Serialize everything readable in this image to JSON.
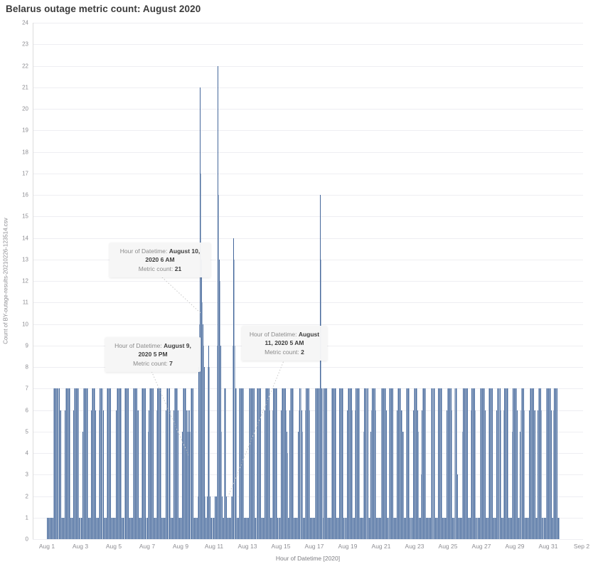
{
  "title": "Belarus outage metric count: August 2020",
  "y_axis": {
    "title": "Count of BY-outage-results-20210226-123514.csv",
    "min": 0,
    "max": 24,
    "tick_step": 1
  },
  "x_axis": {
    "title": "Hour of Datetime [2020]",
    "tick_labels": [
      "Aug 1",
      "Aug 3",
      "Aug 5",
      "Aug 7",
      "Aug 9",
      "Aug 11",
      "Aug 13",
      "Aug 15",
      "Aug 17",
      "Aug 19",
      "Aug 21",
      "Aug 23",
      "Aug 25",
      "Aug 27",
      "Aug 29",
      "Aug 31",
      "Sep 2"
    ]
  },
  "colors": {
    "bar_dark": "#44679b",
    "bar_light": "#a6b7cf",
    "grid": "#eeeef2",
    "tick_text": "#8e8e93",
    "title_text": "#3b3b3b",
    "tooltip_bg": "#f6f6f6",
    "tooltip_text": "#8a8a8a",
    "tooltip_bold": "#3d3d3d",
    "leader": "#c8c8c8"
  },
  "tooltips": [
    {
      "line_label": "Hour of Datetime: ",
      "datetime": "August 10, 2020 6 AM",
      "metric_label": "Metric count: ",
      "metric": "21"
    },
    {
      "line_label": "Hour of Datetime: ",
      "datetime": "August 9, 2020 5 PM",
      "metric_label": "Metric count: ",
      "metric": "7"
    },
    {
      "line_label": "Hour of Datetime: ",
      "datetime": "August 11, 2020 5 AM",
      "metric_label": "Metric count: ",
      "metric": "2"
    }
  ],
  "chart_data": {
    "type": "bar",
    "title": "Belarus outage metric count: August 2020",
    "xlabel": "Hour of Datetime [2020]",
    "ylabel": "Count of BY-outage-results-20210226-123514.csv",
    "ylim": [
      0,
      24
    ],
    "x_unit": "hour",
    "x_start": "2020-08-01 00:00",
    "x_end": "2020-08-31 23:00",
    "grid": true,
    "annotations": [
      {
        "datetime": "August 10, 2020 6 AM",
        "metric_count": 21
      },
      {
        "datetime": "August 9, 2020 5 PM",
        "metric_count": 7
      },
      {
        "datetime": "August 11, 2020 5 AM",
        "metric_count": 2
      }
    ],
    "days": [
      [
        1,
        1,
        1,
        1,
        1,
        1,
        1,
        1,
        1,
        7,
        7,
        7,
        7,
        7,
        7,
        7,
        7,
        7,
        7,
        6,
        6,
        1,
        1,
        1
      ],
      [
        1,
        1,
        6,
        7,
        7,
        7,
        7,
        7,
        7,
        7,
        1,
        1,
        1,
        1,
        6,
        7,
        7,
        7,
        7,
        7,
        7,
        7,
        1,
        1
      ],
      [
        1,
        1,
        1,
        1,
        5,
        7,
        7,
        7,
        7,
        7,
        7,
        7,
        1,
        1,
        1,
        1,
        6,
        7,
        7,
        7,
        7,
        7,
        6,
        1
      ],
      [
        1,
        1,
        1,
        6,
        7,
        7,
        7,
        7,
        7,
        7,
        6,
        1,
        1,
        1,
        1,
        7,
        7,
        7,
        7,
        7,
        7,
        1,
        1,
        1
      ],
      [
        1,
        1,
        1,
        1,
        6,
        7,
        7,
        7,
        7,
        7,
        7,
        7,
        1,
        1,
        1,
        1,
        5,
        7,
        7,
        7,
        7,
        7,
        7,
        1
      ],
      [
        1,
        1,
        1,
        1,
        1,
        7,
        7,
        7,
        7,
        7,
        7,
        6,
        6,
        1,
        1,
        1,
        1,
        7,
        7,
        7,
        7,
        7,
        7,
        1
      ],
      [
        1,
        1,
        1,
        5,
        6,
        7,
        7,
        7,
        7,
        7,
        7,
        1,
        1,
        1,
        1,
        6,
        7,
        7,
        7,
        7,
        7,
        7,
        1,
        1
      ],
      [
        1,
        1,
        1,
        1,
        6,
        7,
        7,
        7,
        7,
        7,
        7,
        6,
        1,
        1,
        1,
        1,
        6,
        7,
        7,
        7,
        7,
        7,
        6,
        1
      ],
      [
        1,
        1,
        1,
        1,
        5,
        7,
        7,
        7,
        7,
        7,
        6,
        5,
        6,
        5,
        6,
        5,
        1,
        7,
        7,
        7,
        7,
        1,
        1,
        1
      ],
      [
        1,
        1,
        1,
        2,
        8,
        10,
        21,
        17,
        13,
        11,
        10,
        9,
        8,
        2,
        1,
        1,
        2,
        8,
        9,
        8,
        2,
        1,
        1,
        1
      ],
      [
        1,
        1,
        1,
        1,
        2,
        2,
        2,
        9,
        22,
        16,
        13,
        12,
        9,
        5,
        2,
        1,
        1,
        7,
        7,
        7,
        2,
        1,
        1,
        1
      ],
      [
        1,
        1,
        1,
        2,
        2,
        9,
        14,
        13,
        9,
        9,
        7,
        7,
        1,
        1,
        1,
        7,
        7,
        7,
        7,
        7,
        7,
        7,
        1,
        1
      ],
      [
        1,
        1,
        1,
        1,
        1,
        7,
        7,
        7,
        7,
        7,
        7,
        7,
        7,
        1,
        1,
        1,
        1,
        7,
        7,
        7,
        7,
        7,
        7,
        1
      ],
      [
        1,
        1,
        1,
        1,
        6,
        7,
        7,
        7,
        7,
        7,
        7,
        6,
        1,
        1,
        1,
        6,
        7,
        7,
        7,
        7,
        7,
        7,
        1,
        1
      ],
      [
        1,
        1,
        1,
        1,
        6,
        7,
        7,
        7,
        7,
        7,
        7,
        6,
        5,
        4,
        1,
        1,
        6,
        7,
        7,
        7,
        7,
        7,
        1,
        1
      ],
      [
        1,
        1,
        1,
        1,
        5,
        6,
        7,
        7,
        7,
        7,
        6,
        5,
        1,
        1,
        1,
        6,
        7,
        7,
        7,
        7,
        7,
        6,
        1,
        1
      ],
      [
        1,
        1,
        1,
        1,
        1,
        7,
        7,
        7,
        7,
        7,
        7,
        7,
        16,
        13,
        7,
        7,
        1,
        1,
        7,
        7,
        7,
        7,
        7,
        1
      ],
      [
        1,
        1,
        1,
        1,
        1,
        7,
        7,
        7,
        7,
        7,
        7,
        7,
        1,
        1,
        1,
        1,
        7,
        7,
        7,
        7,
        7,
        7,
        1,
        1
      ],
      [
        1,
        1,
        1,
        1,
        6,
        7,
        7,
        7,
        7,
        7,
        7,
        6,
        1,
        1,
        1,
        6,
        7,
        7,
        7,
        7,
        7,
        7,
        1,
        1
      ],
      [
        1,
        1,
        1,
        5,
        7,
        7,
        7,
        7,
        7,
        7,
        7,
        1,
        1,
        1,
        5,
        6,
        7,
        7,
        7,
        7,
        7,
        6,
        1,
        1
      ],
      [
        1,
        1,
        1,
        1,
        1,
        7,
        7,
        7,
        7,
        7,
        7,
        7,
        6,
        1,
        1,
        1,
        1,
        7,
        7,
        7,
        7,
        7,
        7,
        1
      ],
      [
        1,
        1,
        1,
        1,
        6,
        7,
        7,
        7,
        7,
        7,
        6,
        6,
        5,
        5,
        1,
        1,
        1,
        7,
        7,
        7,
        7,
        7,
        1,
        1
      ],
      [
        1,
        1,
        1,
        1,
        6,
        7,
        7,
        7,
        7,
        7,
        6,
        5,
        1,
        1,
        1,
        3,
        6,
        7,
        7,
        7,
        7,
        7,
        1,
        1
      ],
      [
        1,
        1,
        1,
        1,
        1,
        7,
        7,
        7,
        7,
        7,
        7,
        7,
        1,
        1,
        1,
        1,
        7,
        7,
        7,
        7,
        7,
        7,
        1,
        1
      ],
      [
        1,
        1,
        1,
        1,
        6,
        7,
        7,
        7,
        7,
        7,
        7,
        6,
        1,
        1,
        1,
        7,
        7,
        7,
        7,
        7,
        3,
        1,
        1,
        1
      ],
      [
        1,
        1,
        1,
        5,
        7,
        7,
        7,
        7,
        7,
        7,
        7,
        1,
        1,
        1,
        1,
        6,
        7,
        7,
        7,
        7,
        7,
        6,
        1,
        1
      ],
      [
        1,
        1,
        1,
        1,
        1,
        7,
        7,
        7,
        7,
        7,
        7,
        7,
        6,
        1,
        1,
        1,
        1,
        7,
        7,
        7,
        7,
        7,
        7,
        1
      ],
      [
        1,
        1,
        1,
        1,
        6,
        7,
        7,
        7,
        7,
        7,
        7,
        6,
        1,
        1,
        1,
        6,
        7,
        7,
        7,
        7,
        7,
        7,
        1,
        1
      ],
      [
        1,
        1,
        1,
        5,
        7,
        7,
        7,
        7,
        7,
        7,
        6,
        1,
        1,
        1,
        5,
        6,
        7,
        7,
        7,
        7,
        7,
        6,
        1,
        1
      ],
      [
        1,
        1,
        1,
        1,
        6,
        7,
        7,
        7,
        7,
        7,
        7,
        6,
        6,
        1,
        1,
        1,
        6,
        7,
        7,
        7,
        7,
        6,
        1,
        1
      ],
      [
        1,
        1,
        1,
        1,
        1,
        7,
        7,
        7,
        7,
        7,
        7,
        7,
        6,
        1,
        1,
        6,
        7,
        7,
        7,
        7,
        7,
        1,
        1,
        1
      ]
    ]
  }
}
